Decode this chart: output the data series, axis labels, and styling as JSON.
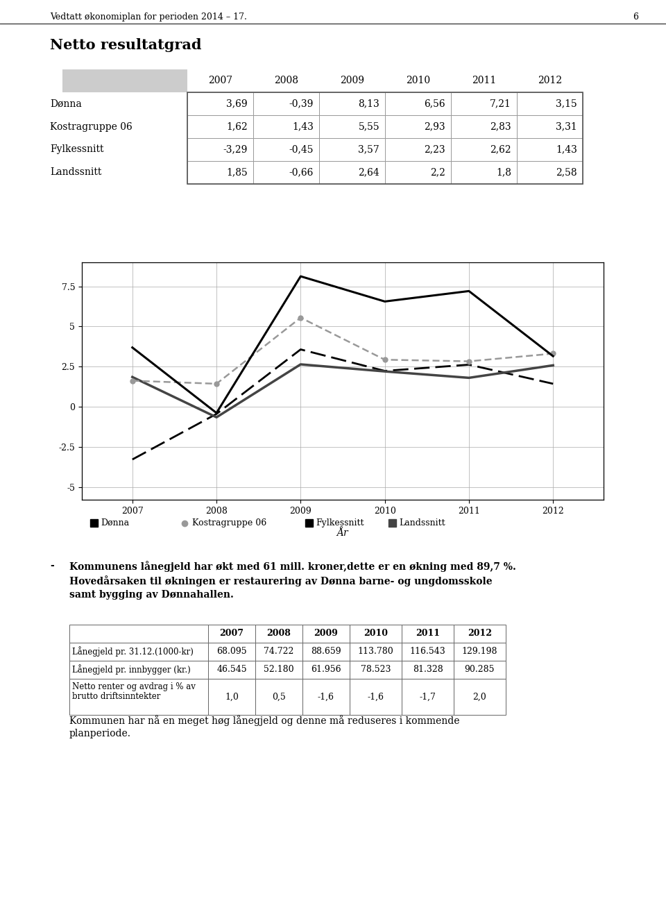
{
  "page_title": "Vedtatt økonomiplan for perioden 2014 – 17.",
  "page_number": "6",
  "section_title": "Netto resultatgrad",
  "table1": {
    "headers": [
      "",
      "2007",
      "2008",
      "2009",
      "2010",
      "2011",
      "2012"
    ],
    "rows": [
      [
        "Dønna",
        "3,69",
        "-0,39",
        "8,13",
        "6,56",
        "7,21",
        "3,15"
      ],
      [
        "Kostragruppe 06",
        "1,62",
        "1,43",
        "5,55",
        "2,93",
        "2,83",
        "3,31"
      ],
      [
        "Fylkessnitt",
        "-3,29",
        "-0,45",
        "3,57",
        "2,23",
        "2,62",
        "1,43"
      ],
      [
        "Landssnitt",
        "1,85",
        "-0,66",
        "2,64",
        "2,2",
        "1,8",
        "2,58"
      ]
    ]
  },
  "chart": {
    "years": [
      2007,
      2008,
      2009,
      2010,
      2011,
      2012
    ],
    "donna": [
      3.69,
      -0.39,
      8.13,
      6.56,
      7.21,
      3.15
    ],
    "kostra": [
      1.62,
      1.43,
      5.55,
      2.93,
      2.83,
      3.31
    ],
    "fylke": [
      -3.29,
      -0.45,
      3.57,
      2.23,
      2.62,
      1.43
    ],
    "lands": [
      1.85,
      -0.66,
      2.64,
      2.2,
      1.8,
      2.58
    ],
    "xlabel": "År",
    "yticks": [
      -5,
      -2.5,
      0,
      2.5,
      5,
      7.5
    ],
    "ylim": [
      -5.8,
      9.0
    ],
    "xlim": [
      2006.4,
      2012.6
    ]
  },
  "legend": {
    "donna_label": "Dønna",
    "kostra_label": "Kostragruppe 06",
    "fylke_label": "Fylkessnitt",
    "lands_label": "Landssnitt"
  },
  "bullet_dash": "-",
  "bullet_text1": "Kommunens lånegjeld har økt med 61 mill. kroner,dette er en økning med 89,7 %.",
  "bullet_text2": "Hovedårsaken til økningen er restaurering av Dønna barne- og ungdomsskole",
  "bullet_text3": "samt bygging av Dønnahallen.",
  "table2": {
    "headers": [
      "",
      "2007",
      "2008",
      "2009",
      "2010",
      "2011",
      "2012"
    ],
    "rows": [
      [
        "Lånegjeld pr. 31.12.(1000-kr)",
        "68.095",
        "74.722",
        "88.659",
        "113.780",
        "116.543",
        "129.198"
      ],
      [
        "Lånegjeld pr. innbygger (kr.)",
        "46.545",
        "52.180",
        "61.956",
        "78.523",
        "81.328",
        "90.285"
      ],
      [
        "Netto renter og avdrag i % av\nbrutto driftsinntekter",
        "1,0",
        "0,5",
        "-1,6",
        "-1,6",
        "-1,7",
        "2,0"
      ]
    ]
  },
  "footer_text1": "Kommunen har nå en meget høg lånegjeld og denne må reduseres i kommende",
  "footer_text2": "planperiode."
}
